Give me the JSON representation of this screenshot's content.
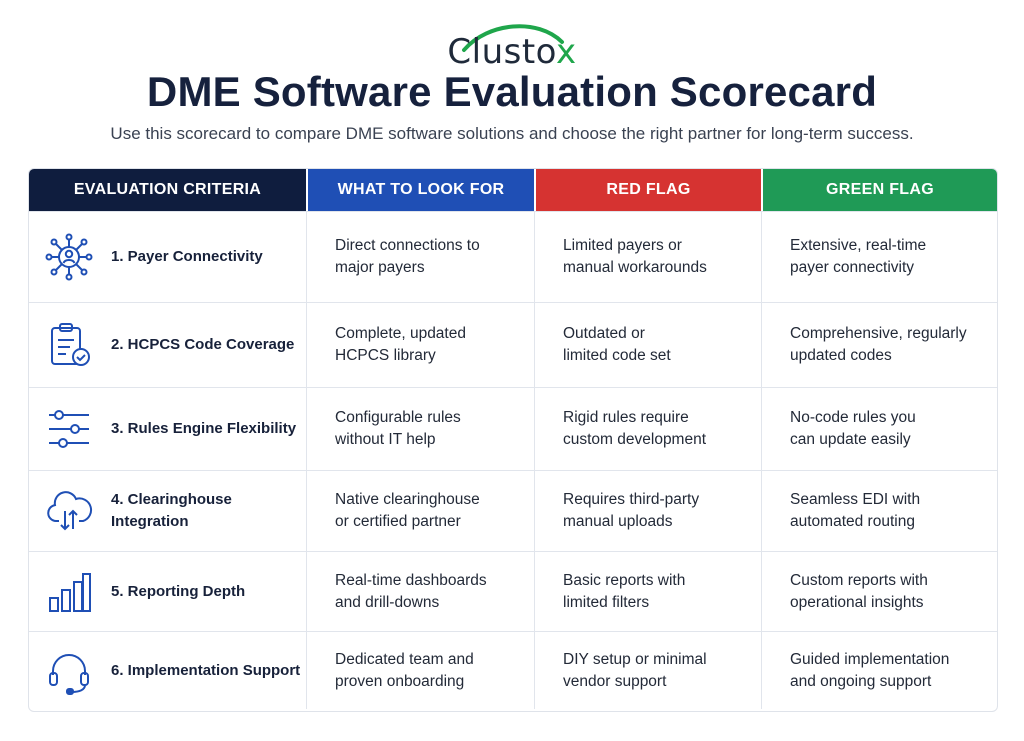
{
  "brand": {
    "logo_text": "Clusto",
    "logo_mark": "x",
    "accent_color": "#1fa64b"
  },
  "header": {
    "title": "DME Software Evaluation Scorecard",
    "subtitle": "Use this scorecard to compare DME software solutions and choose the right partner for long-term success."
  },
  "table": {
    "columns": [
      {
        "label": "EVALUATION CRITERIA",
        "color": "#0f1d3e"
      },
      {
        "label": "WHAT TO LOOK FOR",
        "color": "#1f4fb5"
      },
      {
        "label": "RED FLAG",
        "color": "#d63331"
      },
      {
        "label": "GREEN FLAG",
        "color": "#1f9a56"
      }
    ],
    "rows": [
      {
        "icon": "network-user-icon",
        "criteria": "1.  Payer Connectivity",
        "look_for": "Direct connections to\nmajor payers",
        "red_flag": "Limited payers or\nmanual workarounds",
        "green_flag": "Extensive, real-time\npayer connectivity"
      },
      {
        "icon": "clipboard-check-icon",
        "criteria": "2.  HCPCS Code Coverage",
        "look_for": "Complete, updated\nHCPCS library",
        "red_flag": "Outdated or\nlimited code set",
        "green_flag": "Comprehensive, regularly\nupdated codes"
      },
      {
        "icon": "sliders-icon",
        "criteria": "3.  Rules Engine Flexibility",
        "look_for": "Configurable rules\nwithout IT help",
        "red_flag": "Rigid rules require\ncustom development",
        "green_flag": "No-code rules you\ncan update easily"
      },
      {
        "icon": "cloud-transfer-icon",
        "criteria": "4.  Clearinghouse Integration",
        "look_for": "Native clearinghouse\nor certified partner",
        "red_flag": "Requires third-party\nmanual uploads",
        "green_flag": "Seamless EDI with\nautomated routing"
      },
      {
        "icon": "bar-chart-icon",
        "criteria": "5.  Reporting Depth",
        "look_for": "Real-time dashboards\nand drill-downs",
        "red_flag": "Basic reports with\nlimited filters",
        "green_flag": "Custom reports with\noperational insights"
      },
      {
        "icon": "headset-icon",
        "criteria": "6.  Implementation Support",
        "look_for": "Dedicated team and\nproven onboarding",
        "red_flag": "DIY setup or minimal\nvendor support",
        "green_flag": "Guided implementation\nand ongoing support"
      }
    ]
  }
}
